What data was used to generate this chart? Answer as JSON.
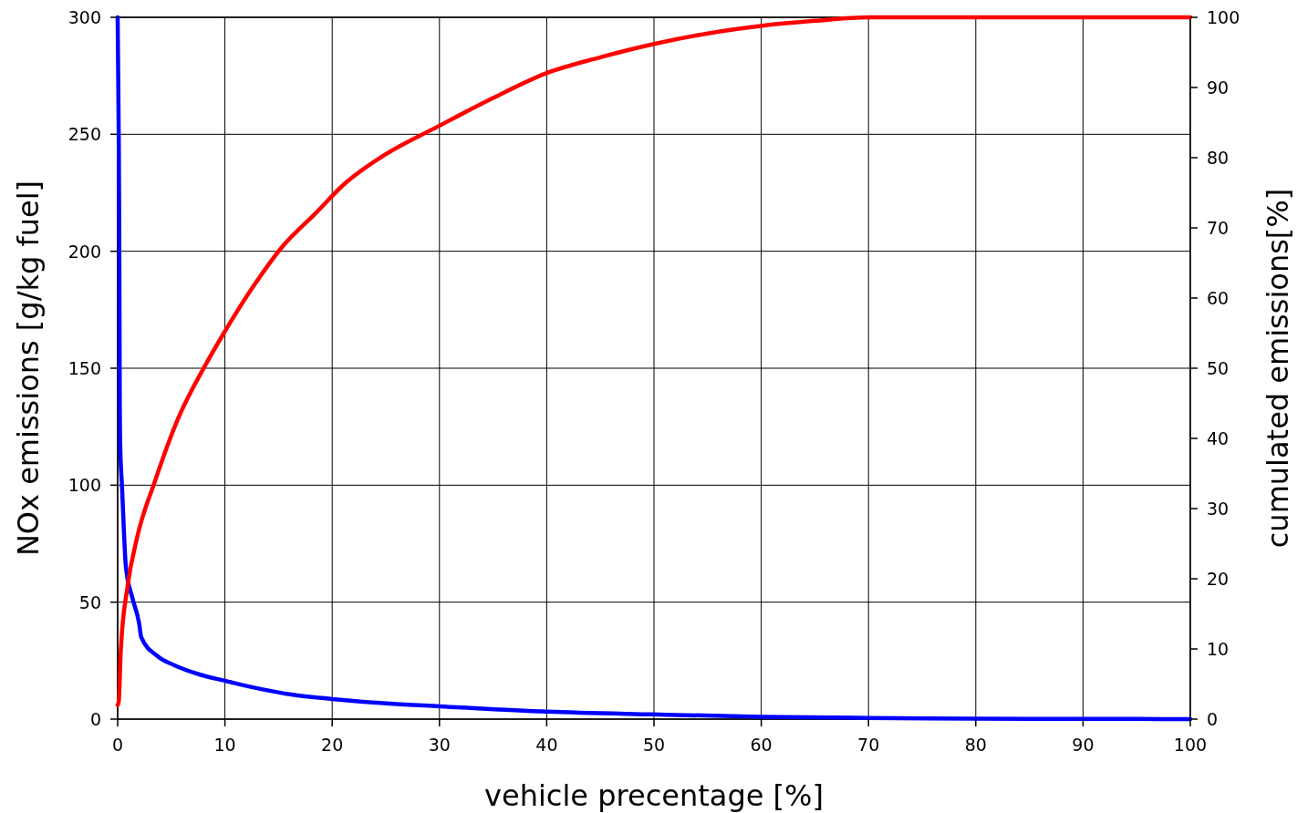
{
  "chart_data": {
    "type": "line",
    "xlabel": "vehicle precentage [%]",
    "ylabel": "NOx emissions [g/kg fuel]",
    "y2label": "cumulated emissions[%]",
    "xlim": [
      0,
      100
    ],
    "xticks": [
      0,
      10,
      20,
      30,
      40,
      50,
      60,
      70,
      80,
      90,
      100
    ],
    "ylim": [
      0,
      300
    ],
    "yticks": [
      0,
      50,
      100,
      150,
      200,
      250,
      300
    ],
    "y2lim": [
      0,
      100
    ],
    "y2ticks": [
      0,
      10,
      20,
      30,
      40,
      50,
      60,
      70,
      80,
      90,
      100
    ],
    "grid": true,
    "marker": "none",
    "line_style": "solid",
    "series": [
      {
        "color": "#0000ff",
        "x": [
          0,
          0.1,
          0.15,
          0.2,
          0.25,
          0.4,
          0.77,
          1.36,
          2,
          2.2,
          3.7,
          5.3,
          7.7,
          10,
          13.3,
          16.2,
          20,
          25.4,
          30,
          40,
          50,
          60,
          70,
          80,
          90,
          100
        ],
        "values": [
          300,
          250,
          208,
          132,
          115,
          100,
          65,
          52,
          41,
          35,
          27,
          23,
          19,
          16.4,
          12.9,
          10.5,
          8.6,
          6.6,
          5.5,
          3.2,
          2,
          1,
          0.5,
          0.2,
          0.1,
          0
        ]
      },
      {
        "color": "#ff0000",
        "axis": "y2",
        "x": [
          0,
          0.1,
          0.3,
          0.9,
          1.8,
          3.5,
          5.6,
          8.2,
          9.9,
          12.8,
          15.4,
          18.4,
          21.1,
          25,
          29.8,
          35,
          39.9,
          45,
          50,
          55,
          60.1,
          65,
          70,
          80,
          90,
          100
        ],
        "values": [
          2,
          2.5,
          10,
          18.7,
          25.8,
          34,
          42.7,
          50.5,
          55,
          62,
          67.4,
          72,
          76.2,
          80.5,
          84.4,
          88.5,
          92,
          94.3,
          96.2,
          97.7,
          98.8,
          99.5,
          100,
          100,
          100,
          100
        ]
      }
    ]
  }
}
